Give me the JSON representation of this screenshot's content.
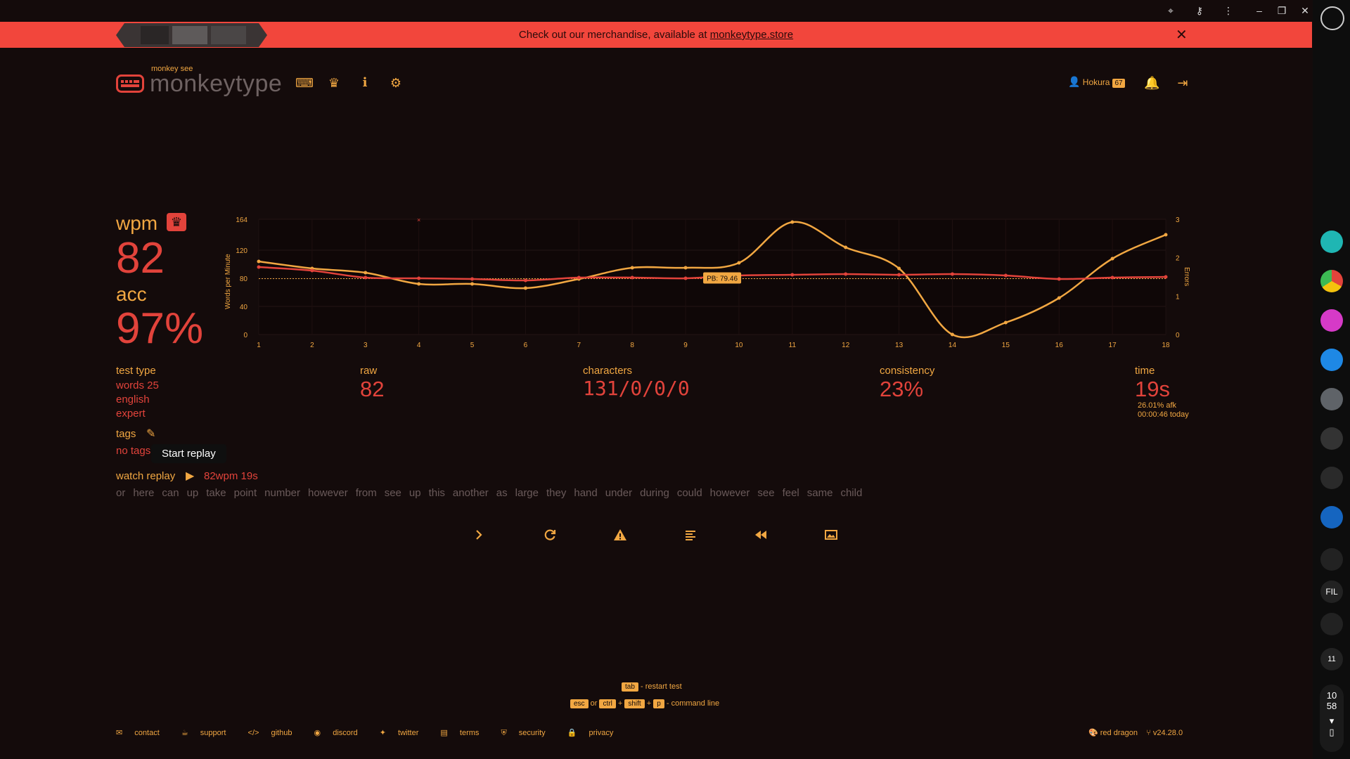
{
  "banner": {
    "message_prefix": "Check out our merchandise, available at ",
    "link": "monkeytype.store",
    "close": "✕"
  },
  "header": {
    "logo_sub": "monkey see",
    "logo_name": "monkeytype",
    "username": "Hokura",
    "level": "67"
  },
  "results": {
    "wpm_label": "wpm",
    "wpm": "82",
    "acc_label": "acc",
    "acc": "97%",
    "test_type_label": "test type",
    "test_type": [
      "words 25",
      "english",
      "expert"
    ],
    "tags_label": "tags",
    "tags_value": "no tags",
    "tooltip": "Start replay",
    "raw_label": "raw",
    "raw": "82",
    "characters_label": "characters",
    "characters": "131/0/0/0",
    "consistency_label": "consistency",
    "consistency": "23%",
    "time_label": "time",
    "time": "19s",
    "afk": "26.01% afk",
    "today": "00:00:46 today",
    "replay_label": "watch replay",
    "replay_info": "82wpm 19s",
    "replay_words": [
      "or",
      "here",
      "can",
      "up",
      "take",
      "point",
      "number",
      "however",
      "from",
      "see",
      "up",
      "this",
      "another",
      "as",
      "large",
      "they",
      "hand",
      "under",
      "during",
      "could",
      "however",
      "see",
      "feel",
      "same",
      "child"
    ]
  },
  "chart_data": {
    "type": "line",
    "x": [
      1,
      2,
      3,
      4,
      5,
      6,
      7,
      8,
      9,
      10,
      11,
      12,
      13,
      14,
      15,
      16,
      17,
      18
    ],
    "series": [
      {
        "name": "wpm",
        "values": [
          96,
          91,
          81,
          80,
          79,
          77,
          81,
          81,
          80,
          84,
          85,
          86,
          85,
          86,
          84,
          79,
          81,
          82
        ],
        "color": "#e2433b"
      },
      {
        "name": "raw",
        "values": [
          104,
          94,
          88,
          72,
          72,
          66,
          79,
          95,
          95,
          102,
          160,
          124,
          94,
          0,
          17,
          52,
          108,
          142
        ],
        "color": "#f1a742"
      }
    ],
    "errors": [
      {
        "x": 4,
        "value": 3
      }
    ],
    "pb_label": "PB: 79.46",
    "pb_value": 79.46,
    "ylabel": "Words per Minute",
    "y2label": "Errors",
    "y_ticks": [
      "0",
      "40",
      "80",
      "120",
      "164"
    ],
    "y2_ticks": [
      "0",
      "1",
      "2",
      "3"
    ],
    "ylim": [
      0,
      164
    ],
    "y2lim": [
      0,
      3
    ]
  },
  "footer": {
    "hint_tab": "tab",
    "hint_restart": "- restart test",
    "hint_esc": "esc",
    "hint_or": "or",
    "hint_ctrl": "ctrl",
    "hint_shift": "shift",
    "hint_p": "p",
    "hint_cmd": "- command line",
    "links": [
      "contact",
      "support",
      "github",
      "discord",
      "twitter",
      "terms",
      "security",
      "privacy"
    ],
    "theme": "red dragon",
    "version": "v24.28.0"
  },
  "shelf": {
    "clock_h": "10",
    "clock_m": "58",
    "fil_label": "FIL",
    "cal_day": "11"
  },
  "colors": {
    "bg": "#140b0b",
    "main": "#e2433b",
    "sub": "#f1a742"
  }
}
